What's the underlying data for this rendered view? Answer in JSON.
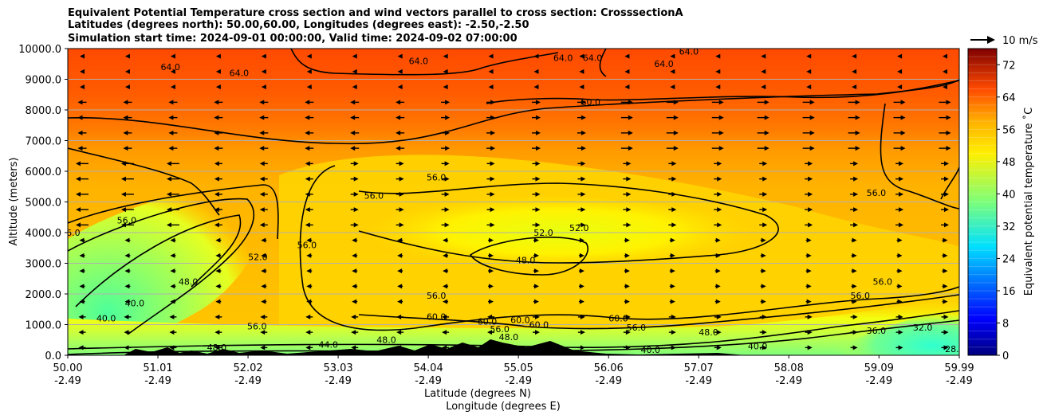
{
  "chart_data": {
    "type": "heatmap",
    "title_lines": [
      "Equivalent Potential Temperature cross section and wind vectors parallel to cross section: CrosssectionA",
      "Latitudes (degrees north): 50.00,60.00, Longitudes (degrees east): -2.50,-2.50",
      "Simulation start time: 2024-09-01 00:00:00, Valid time: 2024-09-02 07:00:00"
    ],
    "ylabel": "Altitude (meters)",
    "xlabel_lines": [
      "Latitude (degrees N)",
      "Longitude (degrees E)"
    ],
    "colorbar_label": "Equivalent potential temperature ˚C",
    "quiver_key_label": "10 m/s",
    "xlim": [
      50.0,
      59.99
    ],
    "ylim": [
      0,
      10000
    ],
    "x_ticks": [
      {
        "lat": "50.00",
        "lon": "-2.49",
        "value": 50.0
      },
      {
        "lat": "51.01",
        "lon": "-2.49",
        "value": 51.01
      },
      {
        "lat": "52.02",
        "lon": "-2.49",
        "value": 52.02
      },
      {
        "lat": "53.03",
        "lon": "-2.49",
        "value": 53.03
      },
      {
        "lat": "54.04",
        "lon": "-2.49",
        "value": 54.04
      },
      {
        "lat": "55.05",
        "lon": "-2.49",
        "value": 55.05
      },
      {
        "lat": "56.06",
        "lon": "-2.49",
        "value": 56.06
      },
      {
        "lat": "57.07",
        "lon": "-2.49",
        "value": 57.07
      },
      {
        "lat": "58.08",
        "lon": "-2.49",
        "value": 58.08
      },
      {
        "lat": "59.09",
        "lon": "-2.49",
        "value": 59.09
      },
      {
        "lat": "59.99",
        "lon": "-2.49",
        "value": 59.99
      }
    ],
    "y_ticks": [
      {
        "label": "0.0",
        "value": 0
      },
      {
        "label": "1000.0",
        "value": 1000
      },
      {
        "label": "2000.0",
        "value": 2000
      },
      {
        "label": "3000.0",
        "value": 3000
      },
      {
        "label": "4000.0",
        "value": 4000
      },
      {
        "label": "5000.0",
        "value": 5000
      },
      {
        "label": "6000.0",
        "value": 6000
      },
      {
        "label": "7000.0",
        "value": 7000
      },
      {
        "label": "8000.0",
        "value": 8000
      },
      {
        "label": "9000.0",
        "value": 9000
      },
      {
        "label": "10000.0",
        "value": 10000
      }
    ],
    "grid": "horizontal lines only",
    "colorbar_range": [
      0,
      76
    ],
    "colorbar_ticks": [
      "0",
      "8",
      "16",
      "24",
      "32",
      "40",
      "48",
      "56",
      "64",
      "72"
    ],
    "colorbar_stops": [
      {
        "value": 0,
        "color": "#00007f"
      },
      {
        "value": 9,
        "color": "#0000ff"
      },
      {
        "value": 27,
        "color": "#00e0ff"
      },
      {
        "value": 38,
        "color": "#7cff7a"
      },
      {
        "value": 50,
        "color": "#ffef00"
      },
      {
        "value": 58,
        "color": "#ffb000"
      },
      {
        "value": 66,
        "color": "#ff4a00"
      },
      {
        "value": 76,
        "color": "#7f0000"
      }
    ],
    "contour_levels": [
      40,
      44,
      48,
      52,
      56,
      60,
      64
    ],
    "contour_labels": [
      {
        "text": "64.0",
        "lat": 51.15,
        "alt": 9300
      },
      {
        "text": "64.0",
        "lat": 51.92,
        "alt": 9100
      },
      {
        "text": "64.0",
        "lat": 53.93,
        "alt": 9500
      },
      {
        "text": "64.0",
        "lat": 55.55,
        "alt": 9600
      },
      {
        "text": "64.0",
        "lat": 55.88,
        "alt": 9600
      },
      {
        "text": "64.0",
        "lat": 56.68,
        "alt": 9400
      },
      {
        "text": "64.0",
        "lat": 56.96,
        "alt": 9800
      },
      {
        "text": "60.0",
        "lat": 55.86,
        "alt": 8150
      },
      {
        "text": "56.0",
        "lat": 54.13,
        "alt": 5700
      },
      {
        "text": "56.0",
        "lat": 53.43,
        "alt": 5100
      },
      {
        "text": "56.0",
        "lat": 50.66,
        "alt": 4300
      },
      {
        "text": "56.0",
        "lat": 50.03,
        "alt": 3900
      },
      {
        "text": "56.0",
        "lat": 52.68,
        "alt": 3500
      },
      {
        "text": "56.0",
        "lat": 59.06,
        "alt": 5200
      },
      {
        "text": "56.0",
        "lat": 59.13,
        "alt": 2300
      },
      {
        "text": "56.0",
        "lat": 58.88,
        "alt": 1850
      },
      {
        "text": "56.0",
        "lat": 54.13,
        "alt": 1850
      },
      {
        "text": "52.0",
        "lat": 55.33,
        "alt": 3900
      },
      {
        "text": "52.0",
        "lat": 55.73,
        "alt": 4050
      },
      {
        "text": "52.0",
        "lat": 52.13,
        "alt": 3100
      },
      {
        "text": "48.0",
        "lat": 55.13,
        "alt": 3000
      },
      {
        "text": "48.0",
        "lat": 51.35,
        "alt": 2300
      },
      {
        "text": "40.0",
        "lat": 50.75,
        "alt": 1600
      },
      {
        "text": "40.0",
        "lat": 50.43,
        "alt": 1100
      },
      {
        "text": "60.0",
        "lat": 54.13,
        "alt": 1150
      },
      {
        "text": "60.0",
        "lat": 54.7,
        "alt": 1000
      },
      {
        "text": "60.0",
        "lat": 55.07,
        "alt": 1050
      },
      {
        "text": "60.0",
        "lat": 55.28,
        "alt": 900
      },
      {
        "text": "60.0",
        "lat": 56.17,
        "alt": 1100
      },
      {
        "text": "56.0",
        "lat": 56.37,
        "alt": 800
      },
      {
        "text": "56.0",
        "lat": 54.84,
        "alt": 750
      },
      {
        "text": "48.0",
        "lat": 57.18,
        "alt": 650
      },
      {
        "text": "48.0",
        "lat": 54.94,
        "alt": 500
      },
      {
        "text": "48.0",
        "lat": 51.67,
        "alt": 150
      },
      {
        "text": "56.0",
        "lat": 52.12,
        "alt": 850
      },
      {
        "text": "44.0",
        "lat": 52.92,
        "alt": 250
      },
      {
        "text": "48.0",
        "lat": 53.57,
        "alt": 400
      },
      {
        "text": "40.0",
        "lat": 56.53,
        "alt": 80
      },
      {
        "text": "40.0",
        "lat": 57.73,
        "alt": 200
      },
      {
        "text": "36.0",
        "lat": 59.06,
        "alt": 700
      },
      {
        "text": "32.0",
        "lat": 59.58,
        "alt": 800
      },
      {
        "text": "28.0",
        "lat": 59.94,
        "alt": 100
      }
    ]
  }
}
